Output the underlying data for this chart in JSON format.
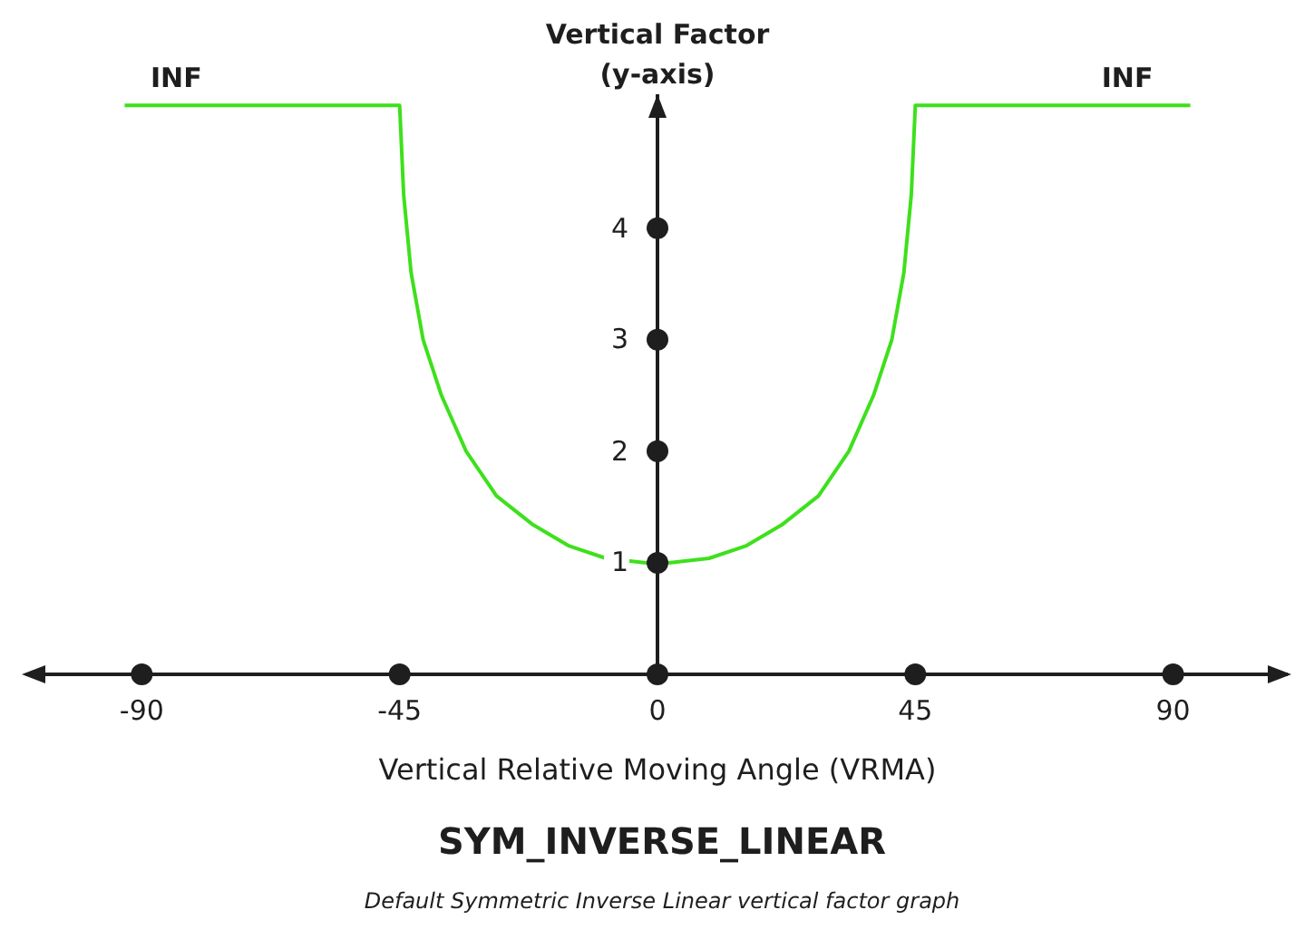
{
  "chart_data": {
    "type": "line",
    "title": "SYM_INVERSE_LINEAR",
    "subtitle": "Default Symmetric Inverse Linear vertical factor graph",
    "xlabel": "Vertical Relative Moving Angle (VRMA)",
    "ylabel": "Vertical Factor\n(y-axis)",
    "annotations": [
      {
        "text": "INF",
        "x": -84,
        "y": 5.1
      },
      {
        "text": "INF",
        "x": 82,
        "y": 5.1
      }
    ],
    "x": [
      -93,
      -45,
      -44.3,
      -43,
      -40.9,
      -37.7,
      -33.4,
      -28.1,
      -21.7,
      -15.4,
      -9,
      -2,
      0,
      2,
      9,
      15.4,
      21.7,
      28.1,
      33.4,
      37.7,
      40.9,
      43,
      44.3,
      45,
      93
    ],
    "series": [
      {
        "type": "scatter",
        "color": "#1e1e1e",
        "x": [
          -90,
          -45,
          0,
          45,
          90,
          0,
          0,
          0,
          0
        ],
        "values": [
          0,
          0,
          0,
          0,
          0,
          1,
          2,
          3,
          4
        ]
      },
      {
        "color": "#3ee01c",
        "values": [
          5.1,
          5.1,
          4.3,
          3.6,
          3.0,
          2.5,
          2.0,
          1.6,
          1.34,
          1.15,
          1.04,
          1.0,
          1.0,
          1.0,
          1.04,
          1.15,
          1.34,
          1.6,
          2.0,
          2.5,
          3.0,
          3.6,
          4.3,
          5.1,
          5.1
        ]
      }
    ],
    "xlim": [
      -110,
      110
    ],
    "ylim": [
      0,
      5.2
    ],
    "xticks": [
      -90,
      -45,
      0,
      45,
      90
    ],
    "yticks": [
      1,
      2,
      3,
      4
    ]
  }
}
